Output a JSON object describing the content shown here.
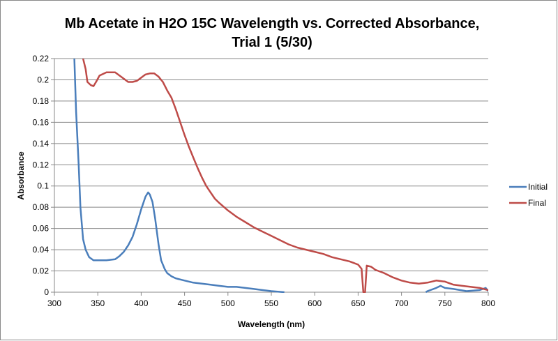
{
  "chart_data": {
    "type": "line",
    "title_lines": [
      "Mb Acetate in H2O 15C Wavelength vs. Corrected Absorbance,",
      "Trial 1 (5/30)"
    ],
    "xlabel": "Wavelength (nm)",
    "ylabel": "Absorbance",
    "xlim": [
      300,
      800
    ],
    "ylim": [
      0,
      0.22
    ],
    "xticks": [
      300,
      350,
      400,
      450,
      500,
      550,
      600,
      650,
      700,
      750,
      800
    ],
    "yticks": [
      "0",
      "0.02",
      "0.04",
      "0.06",
      "0.08",
      "0.1",
      "0.12",
      "0.14",
      "0.16",
      "0.18",
      "0.2",
      "0.22"
    ],
    "grid": "horizontal",
    "legend": "right",
    "series": [
      {
        "name": "Initial",
        "color": "#4a7ebb",
        "x": [
          323,
          325,
          328,
          330,
          333,
          336,
          340,
          345,
          350,
          360,
          370,
          375,
          380,
          385,
          390,
          395,
          400,
          405,
          408,
          410,
          413,
          416,
          420,
          423,
          427,
          430,
          435,
          440,
          450,
          460,
          470,
          480,
          490,
          500,
          510,
          520,
          530,
          540,
          550,
          565,
          566,
          728,
          730,
          740,
          745,
          750,
          760,
          775,
          790,
          797,
          800
        ],
        "y": [
          0.22,
          0.17,
          0.12,
          0.08,
          0.05,
          0.04,
          0.033,
          0.03,
          0.03,
          0.03,
          0.031,
          0.034,
          0.038,
          0.044,
          0.052,
          0.064,
          0.078,
          0.09,
          0.094,
          0.092,
          0.085,
          0.07,
          0.045,
          0.03,
          0.022,
          0.018,
          0.015,
          0.013,
          0.011,
          0.009,
          0.008,
          0.007,
          0.006,
          0.005,
          0.005,
          0.004,
          0.003,
          0.002,
          0.001,
          0,
          null,
          0,
          0.001,
          0.004,
          0.006,
          0.004,
          0.003,
          0.001,
          0.002,
          0.004,
          0.001
        ]
      },
      {
        "name": "Final",
        "color": "#be4b48",
        "x": [
          333,
          336,
          338,
          342,
          345,
          348,
          352,
          360,
          370,
          380,
          385,
          390,
          395,
          400,
          405,
          410,
          415,
          420,
          425,
          430,
          435,
          440,
          445,
          450,
          455,
          460,
          465,
          470,
          475,
          480,
          485,
          490,
          500,
          510,
          520,
          530,
          540,
          550,
          560,
          570,
          580,
          590,
          600,
          610,
          620,
          630,
          640,
          650,
          654,
          656,
          658,
          660,
          665,
          670,
          680,
          690,
          700,
          710,
          720,
          730,
          740,
          750,
          760,
          770,
          780,
          790,
          800
        ],
        "y": [
          0.22,
          0.21,
          0.198,
          0.195,
          0.194,
          0.198,
          0.204,
          0.207,
          0.207,
          0.201,
          0.198,
          0.198,
          0.199,
          0.202,
          0.205,
          0.206,
          0.206,
          0.203,
          0.198,
          0.19,
          0.183,
          0.172,
          0.16,
          0.148,
          0.137,
          0.127,
          0.117,
          0.108,
          0.1,
          0.094,
          0.088,
          0.084,
          0.077,
          0.071,
          0.066,
          0.061,
          0.057,
          0.053,
          0.049,
          0.045,
          0.042,
          0.04,
          0.038,
          0.036,
          0.033,
          0.031,
          0.029,
          0.026,
          0.022,
          0,
          0,
          0.025,
          0.024,
          0.021,
          0.018,
          0.014,
          0.011,
          0.009,
          0.008,
          0.009,
          0.011,
          0.01,
          0.007,
          0.006,
          0.005,
          0.004,
          0.002
        ]
      }
    ]
  }
}
